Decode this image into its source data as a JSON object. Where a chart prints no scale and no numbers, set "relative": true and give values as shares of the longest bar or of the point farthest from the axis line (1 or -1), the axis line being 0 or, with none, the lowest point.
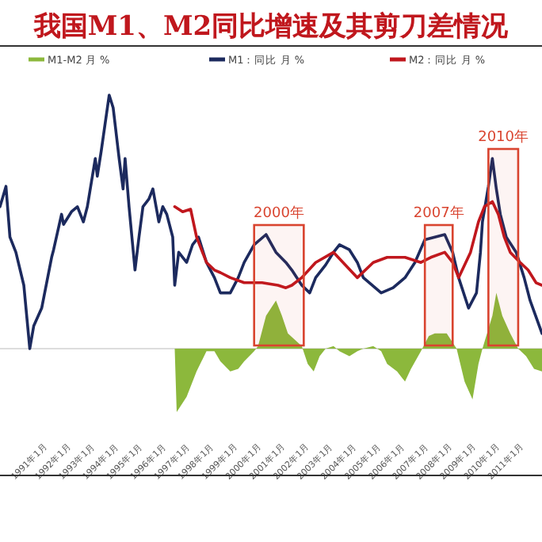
{
  "chart_data": {
    "type": "line",
    "title": "我国M1、M2同比增速及其剪刀差情况",
    "relative": true,
    "legend": "top",
    "xlim": [
      "1989-01",
      "2011-10"
    ],
    "xticks": [
      {
        "value": "1991-01",
        "label": "1991年1月"
      },
      {
        "value": "1992-01",
        "label": "1992年1月"
      },
      {
        "value": "1993-01",
        "label": "1993年1月"
      },
      {
        "value": "1994-01",
        "label": "1994年1月"
      },
      {
        "value": "1995-01",
        "label": "1995年1月"
      },
      {
        "value": "1996-01",
        "label": "1996年1月"
      },
      {
        "value": "1997-01",
        "label": "1997年1月"
      },
      {
        "value": "1998-01",
        "label": "1998年1月"
      },
      {
        "value": "1999-01",
        "label": "1999年1月"
      },
      {
        "value": "2000-01",
        "label": "2000年1月"
      },
      {
        "value": "2001-01",
        "label": "2001年1月"
      },
      {
        "value": "2002-01",
        "label": "2002年1月"
      },
      {
        "value": "2003-01",
        "label": "2003年1月"
      },
      {
        "value": "2004-01",
        "label": "2004年1月"
      },
      {
        "value": "2005-01",
        "label": "2005年1月"
      },
      {
        "value": "2006-01",
        "label": "2006年1月"
      },
      {
        "value": "2007-01",
        "label": "2007年1月"
      },
      {
        "value": "2008-01",
        "label": "2008年1月"
      },
      {
        "value": "2009-01",
        "label": "2009年1月"
      },
      {
        "value": "2010-01",
        "label": "2010年1月"
      },
      {
        "value": "2011-01",
        "label": "2011年1月"
      }
    ],
    "series": [
      {
        "name": "M1-M2 月 %",
        "type": "area",
        "color": "#8cb83c",
        "x": [
          "1996-05",
          "1996-06",
          "1996-11",
          "1997-04",
          "1997-09",
          "1998-01",
          "1998-04",
          "1998-09",
          "1999-01",
          "1999-04",
          "1999-09",
          "1999-11",
          "2000-03",
          "2000-08",
          "2000-11",
          "2001-02",
          "2001-09",
          "2001-12",
          "2002-03",
          "2002-06",
          "2002-09",
          "2003-01",
          "2003-04",
          "2003-09",
          "2004-01",
          "2004-04",
          "2004-09",
          "2005-01",
          "2005-04",
          "2005-09",
          "2006-01",
          "2006-04",
          "2006-09",
          "2007-01",
          "2007-04",
          "2007-10",
          "2008-03",
          "2008-07",
          "2008-11",
          "2009-02",
          "2009-04",
          "2009-09",
          "2009-11",
          "2010-02",
          "2010-06",
          "2010-10",
          "2011-02",
          "2011-06",
          "2011-10"
        ],
        "values": [
          0,
          -0.25,
          -0.19,
          -0.09,
          -0.01,
          -0.01,
          -0.05,
          -0.09,
          -0.08,
          -0.05,
          -0.01,
          0.01,
          0.13,
          0.19,
          0.13,
          0.06,
          0.01,
          -0.06,
          -0.09,
          -0.03,
          0,
          0.01,
          -0.01,
          -0.03,
          -0.01,
          0,
          0.01,
          -0.01,
          -0.06,
          -0.09,
          -0.13,
          -0.08,
          -0.01,
          0.05,
          0.06,
          0.06,
          0,
          -0.13,
          -0.2,
          -0.06,
          0,
          0.13,
          0.22,
          0.13,
          0.06,
          0,
          -0.03,
          -0.08,
          -0.09
        ]
      },
      {
        "name": "M1：同比 月 %",
        "type": "line",
        "color": "#1c2a5e",
        "x": [
          "1989-01",
          "1989-04",
          "1989-06",
          "1989-09",
          "1990-01",
          "1990-04",
          "1990-06",
          "1990-10",
          "1991-03",
          "1991-04",
          "1991-08",
          "1991-09",
          "1992-01",
          "1992-04",
          "1992-07",
          "1992-09",
          "1993-01",
          "1993-02",
          "1993-04",
          "1993-08",
          "1993-10",
          "1994-01",
          "1994-03",
          "1994-04",
          "1994-06",
          "1994-09",
          "1994-11",
          "1995-01",
          "1995-04",
          "1995-06",
          "1995-09",
          "1995-11",
          "1996-01",
          "1996-04",
          "1996-05",
          "1996-07",
          "1996-11",
          "1997-02",
          "1997-05",
          "1997-09",
          "1998-01",
          "1998-04",
          "1998-09",
          "1999-01",
          "1999-04",
          "1999-09",
          "2000-03",
          "2000-08",
          "2001-01",
          "2001-04",
          "2001-09",
          "2002-01",
          "2002-04",
          "2002-09",
          "2003-01",
          "2003-04",
          "2003-09",
          "2004-01",
          "2004-04",
          "2005-01",
          "2005-07",
          "2006-01",
          "2006-06",
          "2006-11",
          "2007-04",
          "2007-09",
          "2008-01",
          "2008-04",
          "2008-09",
          "2009-01",
          "2009-03",
          "2009-04",
          "2009-07",
          "2009-09",
          "2009-11",
          "2010-01",
          "2010-04",
          "2010-09",
          "2011-01",
          "2011-04",
          "2011-10"
        ],
        "values": [
          0.56,
          0.64,
          0.44,
          0.38,
          0.25,
          0,
          0.09,
          0.16,
          0.36,
          0.39,
          0.53,
          0.49,
          0.54,
          0.56,
          0.5,
          0.56,
          0.75,
          0.68,
          0.78,
          1,
          0.95,
          0.75,
          0.63,
          0.75,
          0.56,
          0.31,
          0.44,
          0.56,
          0.59,
          0.63,
          0.5,
          0.56,
          0.53,
          0.44,
          0.25,
          0.38,
          0.34,
          0.41,
          0.44,
          0.34,
          0.28,
          0.22,
          0.22,
          0.28,
          0.34,
          0.41,
          0.45,
          0.38,
          0.34,
          0.31,
          0.25,
          0.22,
          0.28,
          0.33,
          0.38,
          0.41,
          0.39,
          0.34,
          0.28,
          0.22,
          0.24,
          0.28,
          0.34,
          0.43,
          0.44,
          0.45,
          0.38,
          0.28,
          0.16,
          0.22,
          0.38,
          0.5,
          0.64,
          0.75,
          0.63,
          0.53,
          0.44,
          0.38,
          0.28,
          0.19,
          0.06
        ]
      },
      {
        "name": "M2：同比 月 %",
        "type": "line",
        "color": "#c0171d",
        "x": [
          "1996-05",
          "1996-09",
          "1997-01",
          "1997-04",
          "1997-09",
          "1998-01",
          "1998-04",
          "1998-09",
          "1999-04",
          "2000-01",
          "2000-09",
          "2001-01",
          "2001-04",
          "2001-09",
          "2002-04",
          "2003-01",
          "2003-07",
          "2004-01",
          "2004-09",
          "2005-04",
          "2006-01",
          "2006-09",
          "2007-02",
          "2007-09",
          "2008-01",
          "2008-04",
          "2008-10",
          "2009-02",
          "2009-05",
          "2009-09",
          "2009-12",
          "2010-03",
          "2010-06",
          "2010-11",
          "2011-03",
          "2011-07",
          "2011-10"
        ],
        "values": [
          0.56,
          0.54,
          0.55,
          0.44,
          0.34,
          0.31,
          0.3,
          0.28,
          0.26,
          0.26,
          0.25,
          0.24,
          0.25,
          0.28,
          0.34,
          0.38,
          0.33,
          0.28,
          0.34,
          0.36,
          0.36,
          0.34,
          0.36,
          0.38,
          0.34,
          0.28,
          0.38,
          0.5,
          0.56,
          0.58,
          0.53,
          0.44,
          0.38,
          0.34,
          0.31,
          0.26,
          0.25
        ]
      }
    ],
    "bands": [
      {
        "axis": "x",
        "from": "1999-09",
        "to": "2001-10",
        "label": "2000年",
        "color": "#d9442f"
      },
      {
        "axis": "x",
        "from": "2006-11",
        "to": "2008-01",
        "label": "2007年",
        "color": "#d9442f"
      },
      {
        "axis": "x",
        "from": "2009-07",
        "to": "2010-10",
        "label": "2010年",
        "color": "#d9442f"
      }
    ]
  }
}
